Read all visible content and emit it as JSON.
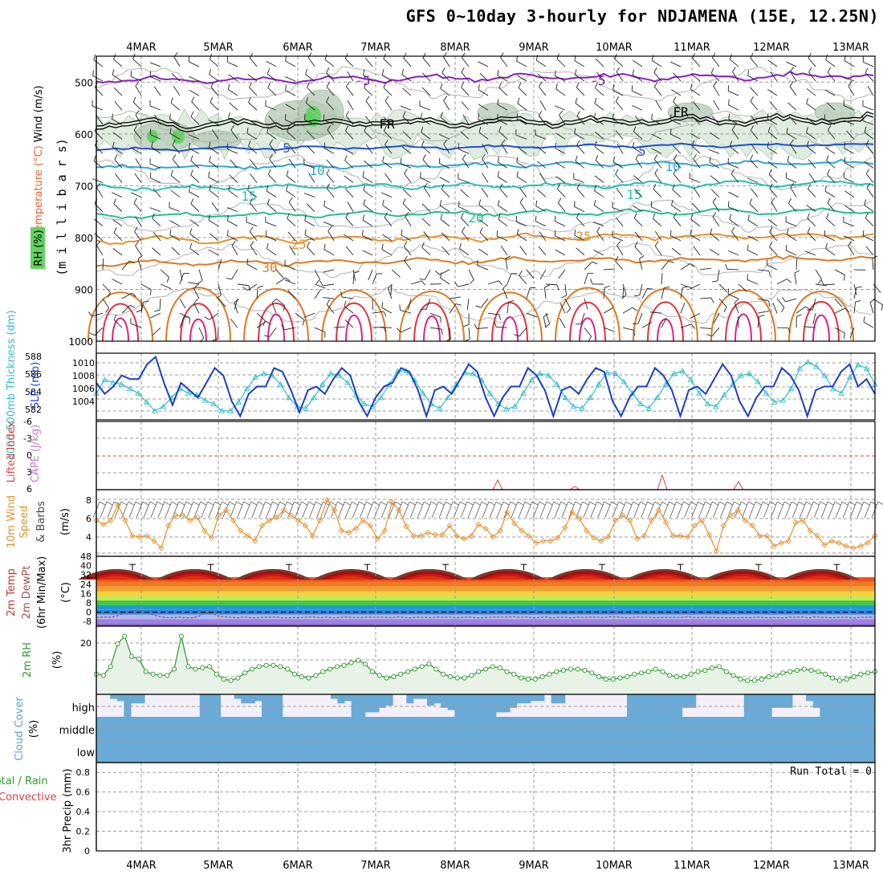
{
  "title": "GFS 0~10day 3-hourly for NDJAMENA (15E, 12.25N)",
  "dates": [
    "4MAR",
    "5MAR",
    "6MAR",
    "7MAR",
    "8MAR",
    "9MAR",
    "10MAR",
    "11MAR",
    "12MAR",
    "13MAR"
  ],
  "colors": {
    "purple": "#8b1ec4",
    "blue": "#1f4fd6",
    "cyan": "#2aa8d8",
    "teal": "#1fc4b0",
    "green_iso": "#20c090",
    "orange": "#e8922a",
    "darkorange": "#e07820",
    "red": "#e8303c",
    "magenta": "#e0208a",
    "freeze": "#000000",
    "rh_fill": "#dcebdc",
    "rh_dark": "#b8ccb8",
    "rh_green": "#5fd35f",
    "slp": "#1a3ec8",
    "thick": "#2ac0c8",
    "wind": "#e8902a",
    "rh2m": "#2a9a2a",
    "cloud": "#6aaad6",
    "cloud_bg": "#f4f0fa"
  },
  "panels": {
    "upper": {
      "label_rh": "RH (%)",
      "label_temp": "Temperature (°C)",
      "label_wind": "Wind (m/s)",
      "label_units": "(m i l l i b a r s)",
      "y_ticks": [
        "500",
        "600",
        "700",
        "800",
        "900",
        "1000"
      ],
      "isotherm_labels": [
        {
          "text": "-5",
          "color": "purple"
        },
        {
          "text": "-5",
          "color": "purple"
        },
        {
          "text": "FR",
          "color": "freeze"
        },
        {
          "text": "FR",
          "color": "freeze"
        },
        {
          "text": "5",
          "color": "blue"
        },
        {
          "text": "5",
          "color": "blue"
        },
        {
          "text": "10",
          "color": "cyan"
        },
        {
          "text": "10",
          "color": "cyan"
        },
        {
          "text": "15",
          "color": "teal"
        },
        {
          "text": "15",
          "color": "teal"
        },
        {
          "text": "20",
          "color": "green_iso"
        },
        {
          "text": "25",
          "color": "orange"
        },
        {
          "text": "25",
          "color": "orange"
        },
        {
          "text": "30",
          "color": "darkorange"
        }
      ]
    },
    "slp": {
      "label_thick": "1000-500mb Thickness (dm)",
      "label_slp": "SLP (mb)",
      "left_ticks": [
        "588",
        "586",
        "584",
        "582"
      ],
      "right_ticks": [
        "1010",
        "1008",
        "1006",
        "1004"
      ]
    },
    "cape": {
      "label_li": "Lifted Index",
      "label_cape": "CAPE (J/kg)",
      "ticks": [
        "-6",
        "-3",
        "0",
        "3",
        "6"
      ]
    },
    "wind10m": {
      "label_1": "10m Wind",
      "label_2": "Speed",
      "label_3": "& Barbs",
      "label_units": "(m/s)",
      "ticks": [
        "8",
        "6",
        "4"
      ]
    },
    "temp2m": {
      "label_1": "2m Temp",
      "label_2": "2m DewPt",
      "label_3": "(6hr Min/Max)",
      "label_units": "(°C)",
      "ticks": [
        "48",
        "40",
        "32",
        "24",
        "16",
        "8",
        "0",
        "-8"
      ]
    },
    "rh2m": {
      "label": "2m RH",
      "label_units": "(%)",
      "ticks": [
        "20"
      ]
    },
    "cloud": {
      "label": "Cloud Cover",
      "label_units": "(%)",
      "levels": [
        "high",
        "middle",
        "low"
      ]
    },
    "precip": {
      "label_1": "Total / Rain",
      "label_2": "Convective",
      "label_3": "3hr Precip (mm)",
      "ticks": [
        "0.8",
        "0.6",
        "0.4",
        "0.2",
        "0"
      ],
      "run_total": "Run Total = 0"
    }
  },
  "chart_data": [
    {
      "type": "line",
      "name": "slp",
      "title": "SLP (mb)",
      "ylim": [
        1002,
        1011
      ],
      "values": [
        1007,
        1005.5,
        1006.5,
        1008,
        1007.5,
        1007.5,
        1009.5,
        1010.5,
        1007,
        1004,
        1007,
        1006,
        1005,
        1007,
        1009,
        1008,
        1004.5,
        1002.5,
        1005.5,
        1006.5,
        1006.5,
        1009,
        1008.5,
        1006,
        1003,
        1006,
        1006.5,
        1005.5,
        1007.5,
        1009,
        1008,
        1004.5,
        1002.5,
        1005,
        1006.5,
        1007,
        1009,
        1008.5,
        1006,
        1002.5,
        1006,
        1006.5,
        1005.5,
        1007.5,
        1009.5,
        1008.5,
        1005,
        1002.5,
        1005,
        1006.5,
        1006.5,
        1009,
        1008,
        1006,
        1002.5,
        1006,
        1006.5,
        1005.5,
        1007.5,
        1009,
        1008.5,
        1004.5,
        1002.5,
        1005,
        1006.5,
        1006.5,
        1009,
        1008,
        1006,
        1002.5,
        1006,
        1006.5,
        1005.5,
        1007.5,
        1009.5,
        1008,
        1004.5,
        1002.5,
        1005,
        1006.5,
        1006.5,
        1009,
        1008,
        1006,
        1002.5,
        1006,
        1006.5,
        1006.5,
        1008.5,
        1009.5,
        1006.5,
        1007.5,
        1005.5
      ]
    },
    {
      "type": "line",
      "name": "thickness",
      "title": "1000-500mb Thickness (dm)",
      "ylim": [
        581,
        588.5
      ],
      "values": [
        584,
        585.5,
        585.2,
        585,
        584.5,
        584,
        583,
        582,
        582.5,
        583.5,
        584.5,
        584,
        583.8,
        583.2,
        582.8,
        582,
        582,
        583,
        584.5,
        585.8,
        586.2,
        586,
        585,
        583.5,
        582.5,
        582.3,
        583.5,
        585,
        586.2,
        586,
        585.2,
        583.8,
        582.8,
        582.5,
        583.5,
        585,
        586.5,
        586.5,
        585.5,
        584,
        582.8,
        582.3,
        583.5,
        585,
        586.3,
        586.2,
        585.5,
        584,
        582.8,
        582.2,
        582.5,
        584,
        585.5,
        586.2,
        586,
        585,
        583.5,
        582.5,
        582.3,
        583.5,
        585,
        586.3,
        586.2,
        585.3,
        584,
        582.8,
        582.3,
        583.5,
        585,
        586.2,
        586.5,
        585.5,
        584,
        582.8,
        582.5,
        583.8,
        585,
        586,
        586.2,
        585.3,
        584,
        583,
        583.2,
        584.5,
        586.8,
        587.5,
        587,
        586,
        584.5,
        584,
        585.8,
        587.2,
        586.8,
        585
      ]
    },
    {
      "type": "line",
      "name": "wind10m_speed",
      "title": "10m Wind Speed & Barbs (m/s)",
      "ylim": [
        2.5,
        9
      ],
      "values": [
        6,
        5.6,
        6,
        7.5,
        6,
        4.5,
        4.4,
        4.5,
        4,
        3.3,
        5.5,
        6.5,
        6.5,
        6,
        6.3,
        5,
        4.3,
        6.5,
        7,
        6,
        5,
        4.5,
        4,
        5.5,
        6,
        6.3,
        7,
        6.5,
        6,
        5.5,
        4.5,
        6,
        8,
        7,
        5,
        4.8,
        5.2,
        6,
        5.5,
        4.2,
        5,
        7.8,
        7,
        5.4,
        4.5,
        4.5,
        4.8,
        4.6,
        4.6,
        5.5,
        4.5,
        4.2,
        4.5,
        5.6,
        5.2,
        4.4,
        5,
        6.8,
        5.7,
        5,
        4.5,
        3.8,
        4,
        4,
        4.3,
        5.3,
        6.8,
        6.2,
        5,
        4.3,
        4,
        4.4,
        6,
        6.5,
        6,
        4.2,
        4.5,
        6,
        7,
        5.8,
        4.5,
        4.5,
        4.4,
        5.5,
        6,
        4.6,
        3,
        5.5,
        6.5,
        7,
        6,
        5.5,
        4.5,
        4.5,
        3.5,
        3.8,
        4,
        5.8,
        6,
        5,
        4.5,
        3.6,
        4,
        3.8,
        3.5,
        3.3,
        3.5,
        3.8,
        4.5
      ]
    },
    {
      "type": "line",
      "name": "rh2m",
      "title": "2m RH (%)",
      "ylim": [
        0,
        27
      ],
      "values": [
        8,
        7.5,
        11,
        20,
        23,
        15,
        14,
        9,
        8,
        7.5,
        7.5,
        10,
        23,
        11,
        10,
        10.5,
        11,
        8,
        6,
        5.5,
        6.5,
        8.5,
        10,
        11,
        11.5,
        11.5,
        11,
        10,
        8,
        7,
        6.5,
        7.5,
        9,
        10,
        11,
        11.5,
        12.5,
        13.5,
        12,
        9,
        7.5,
        6.5,
        7,
        8,
        9,
        10,
        11,
        12,
        10,
        8,
        7,
        6.5,
        6.5,
        7.5,
        9,
        10,
        11,
        10.5,
        9,
        8,
        6.5,
        6,
        6,
        7,
        8,
        9,
        9.5,
        10,
        10,
        9.5,
        8.5,
        7,
        6,
        6,
        6.5,
        7,
        8,
        8.5,
        9,
        10,
        9,
        7.5,
        7,
        7,
        8,
        9,
        9.5,
        10.5,
        11,
        9,
        7.5,
        6,
        5.5,
        5.5,
        6,
        7,
        7.5,
        8.5,
        9,
        9.5,
        10,
        9.5,
        9,
        8,
        6.5,
        5.5,
        6,
        7,
        8,
        8.5,
        9
      ]
    },
    {
      "type": "bar",
      "name": "cloud_high",
      "title": "Cloud Cover high (%)",
      "values": [
        0,
        0,
        20,
        30,
        100,
        40,
        40,
        0,
        0,
        0,
        0,
        0,
        0,
        0,
        0,
        100,
        100,
        100,
        0,
        0,
        20,
        40,
        40,
        30,
        100,
        100,
        100,
        0,
        0,
        0,
        0,
        0,
        0,
        0,
        20,
        40,
        30,
        100,
        100,
        80,
        80,
        60,
        50,
        0,
        0,
        40,
        20,
        20,
        50,
        40,
        60,
        70,
        100,
        100,
        100,
        100,
        100,
        100,
        80,
        80,
        60,
        40,
        40,
        30,
        30,
        0,
        40,
        40,
        0,
        0,
        0,
        0,
        0,
        0,
        0,
        0,
        0,
        100,
        100,
        100,
        100,
        100,
        100,
        100,
        100,
        60,
        60,
        0,
        0,
        0,
        0,
        0,
        0,
        0,
        100,
        100,
        100,
        100,
        60,
        60,
        60,
        0,
        0,
        30,
        60,
        100,
        100,
        100,
        100,
        100,
        100,
        100,
        100
      ]
    },
    {
      "type": "bar",
      "name": "cloud_mid_low",
      "title": "Cloud Cover middle/low (%)",
      "values": [
        100,
        100
      ]
    },
    {
      "type": "line",
      "name": "precip",
      "title": "3hr Precip (mm)",
      "ylim": [
        0,
        1
      ],
      "values": [
        0
      ]
    }
  ]
}
